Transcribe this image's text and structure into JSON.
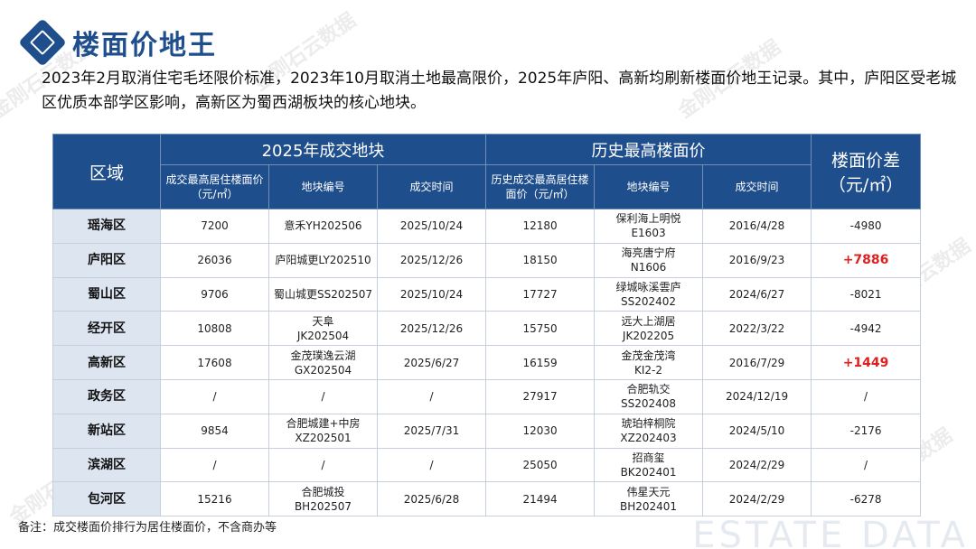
{
  "title": "楼面价地王",
  "intro": "2023年2月取消住宅毛坯限价标准，2023年10月取消土地最高限价，2025年庐阳、高新均刷新楼面价地王记录。其中，庐阳区受老城区优质本部学区影响，高新区为蜀西湖板块的核心地块。",
  "table": {
    "header": {
      "region": "区域",
      "group_2025": "2025年成交地块",
      "group_hist": "历史最高楼面价",
      "diff": "楼面价差（元/㎡）",
      "sub_2025_price": "成交最高居住楼面价（元/㎡）",
      "sub_2025_code": "地块编号",
      "sub_2025_time": "成交时间",
      "sub_hist_price": "历史成交最高居住楼面价（元/㎡）",
      "sub_hist_code": "地块编号",
      "sub_hist_time": "成交时间"
    },
    "rows": [
      {
        "region": "瑶海区",
        "price2025": "7200",
        "code2025": "意禾YH202506",
        "time2025": "2025/10/24",
        "histPrice": "12180",
        "histCode": "保利海上明悦\nE1603",
        "histTime": "2016/4/28",
        "diff": "-4980",
        "positive": false
      },
      {
        "region": "庐阳区",
        "price2025": "26036",
        "code2025": "庐阳城更LY202510",
        "time2025": "2025/12/26",
        "histPrice": "18150",
        "histCode": "海亮唐宁府\nN1606",
        "histTime": "2016/9/23",
        "diff": "+7886",
        "positive": true
      },
      {
        "region": "蜀山区",
        "price2025": "9706",
        "code2025": "蜀山城更SS202507",
        "time2025": "2025/10/24",
        "histPrice": "17727",
        "histCode": "绿城咏溪雲庐\nSS202402",
        "histTime": "2024/6/27",
        "diff": "-8021",
        "positive": false
      },
      {
        "region": "经开区",
        "price2025": "10808",
        "code2025": "天阜\nJK202504",
        "time2025": "2025/12/26",
        "histPrice": "15750",
        "histCode": "远大上湖居\nJK202205",
        "histTime": "2022/3/22",
        "diff": "-4942",
        "positive": false
      },
      {
        "region": "高新区",
        "price2025": "17608",
        "code2025": "金茂璞逸云湖\nGX202504",
        "time2025": "2025/6/27",
        "histPrice": "16159",
        "histCode": "金茂金茂湾\nKI2-2",
        "histTime": "2016/7/29",
        "diff": "+1449",
        "positive": true
      },
      {
        "region": "政务区",
        "price2025": "/",
        "code2025": "/",
        "time2025": "/",
        "histPrice": "27917",
        "histCode": "合肥轨交\nSS202408",
        "histTime": "2024/12/19",
        "diff": "/",
        "positive": false
      },
      {
        "region": "新站区",
        "price2025": "9854",
        "code2025": "合肥城建+中房\nXZ202501",
        "time2025": "2025/7/31",
        "histPrice": "12030",
        "histCode": "琥珀梓桐院\nXZ202403",
        "histTime": "2024/5/10",
        "diff": "-2176",
        "positive": false
      },
      {
        "region": "滨湖区",
        "price2025": "/",
        "code2025": "/",
        "time2025": "/",
        "histPrice": "25050",
        "histCode": "招商玺\nBK202401",
        "histTime": "2024/2/29",
        "diff": "/",
        "positive": false
      },
      {
        "region": "包河区",
        "price2025": "15216",
        "code2025": "合肥城投\nBH202507",
        "time2025": "2025/6/28",
        "histPrice": "21494",
        "histCode": "伟星天元\nBH202401",
        "histTime": "2024/2/29",
        "diff": "-6278",
        "positive": false
      }
    ]
  },
  "note": "备注：成交楼面价排行为居住楼面价，不含商办等",
  "watermark": "金刚石云数据",
  "watermark_en": "ESTATE DATA",
  "colors": {
    "brand": "#1f4e8c",
    "positive": "#e02020",
    "region_bg": "#dde5f1"
  }
}
